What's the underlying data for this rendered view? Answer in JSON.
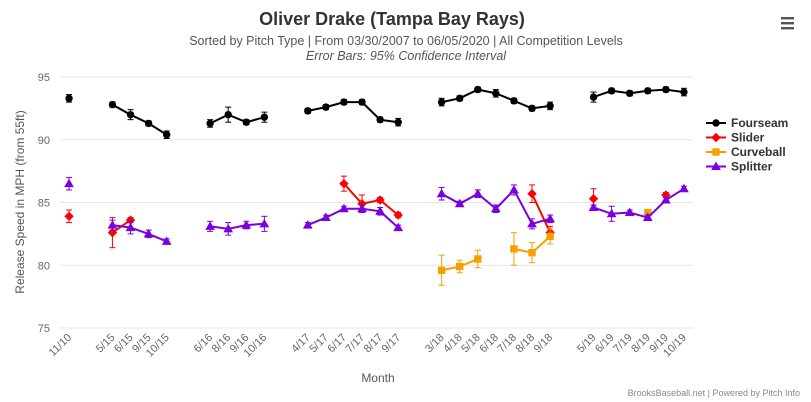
{
  "chart_data": {
    "type": "line",
    "title": "Oliver Drake (Tampa Bay Rays)",
    "subtitle": "Sorted by Pitch Type | From 03/30/2007 to 06/05/2020 | All Competition Levels",
    "subtitle2": "Error Bars: 95% Confidence Interval",
    "xlabel": "Month",
    "ylabel": "Release Speed in MPH (from 55ft)",
    "ylim": [
      75,
      95
    ],
    "yticks": [
      75,
      80,
      85,
      90,
      95
    ],
    "grid": true,
    "legend_position": "right",
    "credits": "BrooksBaseball.net | Powered by Pitch Info",
    "categories": [
      "11/10",
      "5/15",
      "6/15",
      "9/15",
      "10/15",
      "6/16",
      "8/16",
      "9/16",
      "10/16",
      "4/17",
      "5/17",
      "6/17",
      "7/17",
      "8/17",
      "9/17",
      "3/18",
      "4/18",
      "5/18",
      "6/18",
      "7/18",
      "8/18",
      "9/18",
      "5/19",
      "6/19",
      "7/19",
      "8/19",
      "9/19",
      "10/19"
    ],
    "groups": [
      [
        0
      ],
      [
        1,
        2,
        3,
        4
      ],
      [
        5,
        6,
        7,
        8
      ],
      [
        9,
        10,
        11,
        12,
        13,
        14
      ],
      [
        15,
        16,
        17,
        18,
        19,
        20,
        21
      ],
      [
        22,
        23,
        24,
        25,
        26,
        27
      ]
    ],
    "series": [
      {
        "name": "Fourseam",
        "color": "#000000",
        "marker": "circle",
        "values": [
          93.3,
          92.8,
          92.0,
          91.3,
          90.4,
          91.3,
          92.0,
          91.4,
          91.8,
          92.3,
          92.6,
          93.0,
          93.0,
          91.6,
          91.4,
          93.0,
          93.3,
          94.0,
          93.7,
          93.1,
          92.5,
          92.7,
          93.4,
          93.9,
          93.7,
          93.9,
          94.0,
          93.8
        ],
        "err": [
          0.3,
          0.2,
          0.4,
          0.2,
          0.3,
          0.3,
          0.6,
          0.2,
          0.4,
          0.2,
          0.2,
          0.2,
          0.2,
          0.2,
          0.3,
          0.3,
          0.2,
          0.2,
          0.3,
          0.2,
          0.2,
          0.3,
          0.4,
          0.2,
          0.2,
          0.2,
          0.2,
          0.3
        ]
      },
      {
        "name": "Slider",
        "color": "#ff0000",
        "marker": "diamond",
        "values": [
          83.9,
          82.6,
          83.6,
          null,
          null,
          null,
          null,
          null,
          null,
          null,
          null,
          86.5,
          84.9,
          85.2,
          84.0,
          null,
          null,
          null,
          null,
          null,
          85.7,
          82.6,
          85.3,
          null,
          null,
          null,
          85.6,
          null
        ],
        "err": [
          0.5,
          1.2,
          0.2,
          null,
          null,
          null,
          null,
          null,
          null,
          null,
          null,
          0.6,
          0.7,
          0.2,
          0.2,
          null,
          null,
          null,
          null,
          null,
          0.7,
          0.5,
          0.8,
          null,
          null,
          null,
          0.2,
          null
        ]
      },
      {
        "name": "Curveball",
        "color": "#f5a000",
        "marker": "square",
        "values": [
          null,
          null,
          null,
          null,
          null,
          null,
          null,
          null,
          null,
          null,
          null,
          null,
          null,
          null,
          null,
          79.6,
          79.9,
          80.5,
          null,
          81.3,
          81.0,
          82.3,
          null,
          null,
          null,
          84.2,
          null,
          null
        ],
        "err": [
          null,
          null,
          null,
          null,
          null,
          null,
          null,
          null,
          null,
          null,
          null,
          null,
          null,
          null,
          null,
          1.2,
          0.5,
          0.7,
          null,
          1.3,
          0.8,
          0.6,
          null,
          null,
          null,
          0.2,
          null,
          null
        ]
      },
      {
        "name": "Splitter",
        "color": "#7a00dd",
        "marker": "triangle",
        "values": [
          86.5,
          83.2,
          83.0,
          82.5,
          81.9,
          83.1,
          82.9,
          83.2,
          83.3,
          83.2,
          83.8,
          84.5,
          84.5,
          84.3,
          83.0,
          85.7,
          84.9,
          85.7,
          84.5,
          86.0,
          83.3,
          83.7,
          84.6,
          84.1,
          84.2,
          83.8,
          85.2,
          86.1
        ],
        "err": [
          0.5,
          0.4,
          0.5,
          0.3,
          0.2,
          0.4,
          0.5,
          0.3,
          0.6,
          0.2,
          0.2,
          0.2,
          0.3,
          0.3,
          0.2,
          0.5,
          0.2,
          0.3,
          0.3,
          0.4,
          0.4,
          0.3,
          0.2,
          0.6,
          0.2,
          0.2,
          0.2,
          0.2
        ]
      }
    ]
  }
}
